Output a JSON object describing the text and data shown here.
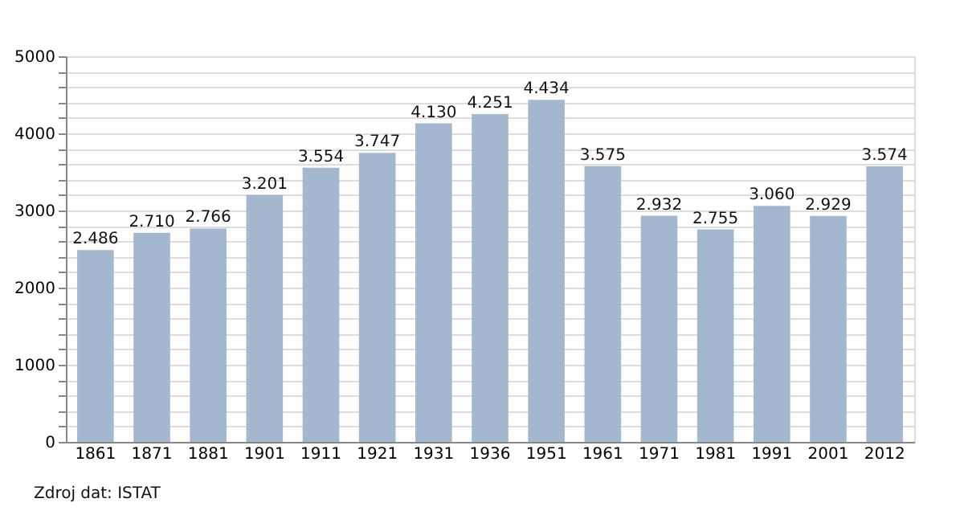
{
  "chart_data": {
    "type": "bar",
    "categories": [
      "1861",
      "1871",
      "1881",
      "1901",
      "1911",
      "1921",
      "1931",
      "1936",
      "1951",
      "1961",
      "1971",
      "1981",
      "1991",
      "2001",
      "2012"
    ],
    "values": [
      2486,
      2710,
      2766,
      3201,
      3554,
      3747,
      4130,
      4251,
      4434,
      3575,
      2932,
      2755,
      3060,
      2929,
      3574
    ],
    "value_labels": [
      "2.486",
      "2.710",
      "2.766",
      "3.201",
      "3.554",
      "3.747",
      "4.130",
      "4.251",
      "4.434",
      "3.575",
      "2.932",
      "2.755",
      "3.060",
      "2.929",
      "3.574"
    ],
    "color": "#a3b8cf",
    "ylim": [
      0,
      5000
    ],
    "yticks": [
      0,
      {
        "value": 200,
        "label": null
      },
      {
        "value": 400,
        "label": null
      },
      {
        "value": 600,
        "label": null
      },
      {
        "value": 800,
        "label": null
      },
      1000,
      {
        "value": 1200,
        "label": null
      },
      {
        "value": 1400,
        "label": null
      },
      {
        "value": 1600,
        "label": null
      },
      {
        "value": 1800,
        "label": null
      },
      2000,
      {
        "value": 2200,
        "label": null
      },
      {
        "value": 2400,
        "label": null
      },
      {
        "value": 2600,
        "label": null
      },
      {
        "value": 2800,
        "label": null
      },
      3000,
      {
        "value": 3200,
        "label": null
      },
      {
        "value": 3400,
        "label": null
      },
      {
        "value": 3600,
        "label": null
      },
      {
        "value": 3800,
        "label": null
      },
      4000,
      {
        "value": 4200,
        "label": null
      },
      {
        "value": 4400,
        "label": null
      },
      {
        "value": 4600,
        "label": null
      },
      {
        "value": 4800,
        "label": null
      },
      5000
    ],
    "grid": "y",
    "annotations": [
      "Zdroj dat: ISTAT"
    ]
  }
}
